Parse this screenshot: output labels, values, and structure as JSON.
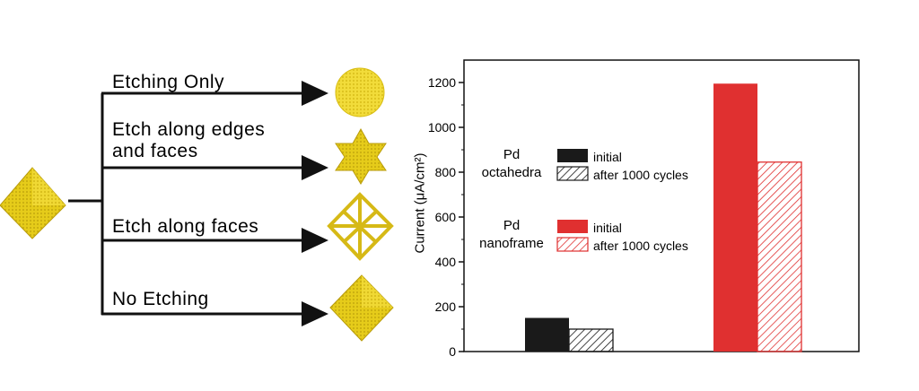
{
  "diagram": {
    "branches": [
      {
        "line1": "Etching Only",
        "line2": "",
        "shape": "sphere"
      },
      {
        "line1": "Etch along edges",
        "line2": "and faces",
        "shape": "star"
      },
      {
        "line1": "Etch along faces",
        "line2": "",
        "shape": "nanoframe"
      },
      {
        "line1": "No Etching",
        "line2": "",
        "shape": "octahedron"
      }
    ],
    "particle_color": "#e6cc1a"
  },
  "chart_data": {
    "type": "bar",
    "categories": [
      "Pd octahedra",
      "Pd nanoframe"
    ],
    "series": [
      {
        "name": "initial",
        "values": [
          150,
          1195
        ]
      },
      {
        "name": "after 1000 cycles",
        "values": [
          100,
          845
        ]
      }
    ],
    "ylabel": "Current (μA/cm²)",
    "ylim": [
      0,
      1300
    ],
    "yticks": [
      "0",
      "200",
      "400",
      "600",
      "800",
      "1000",
      "1200"
    ],
    "legend": {
      "groups": [
        {
          "name_line1": "Pd",
          "name_line2": "octahedra",
          "initial": "initial",
          "after": "after 1000 cycles",
          "color": "#1a1a1a"
        },
        {
          "name_line1": "Pd",
          "name_line2": "nanoframe",
          "initial": "initial",
          "after": "after 1000 cycles",
          "color": "#e03030"
        }
      ]
    },
    "colors": {
      "octahedra": "#1a1a1a",
      "nanoframe": "#e03030"
    }
  }
}
